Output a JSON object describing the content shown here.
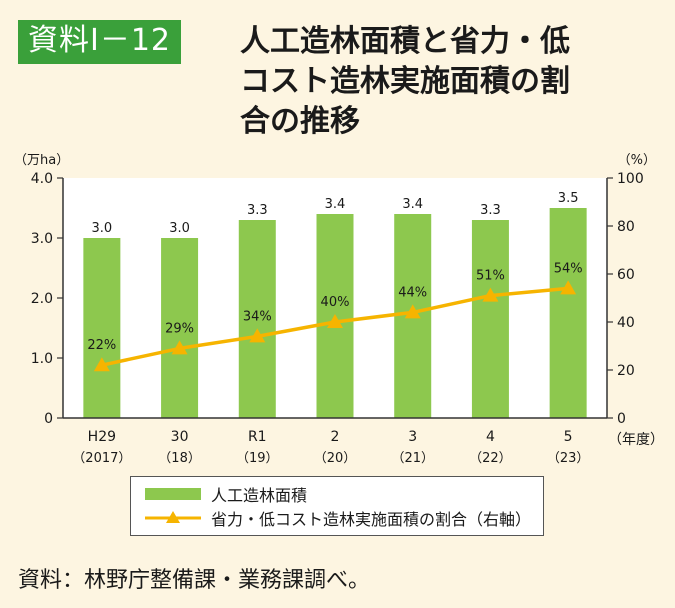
{
  "header": {
    "badge": "資料Ⅰ－12",
    "title_lines": [
      "人工造林面積と省力・低",
      "コスト造林実施面積の割",
      "合の推移"
    ]
  },
  "chart_data": {
    "type": "bar",
    "categories": [
      "H29",
      "30",
      "R1",
      "2",
      "3",
      "4",
      "5"
    ],
    "category_sublabels": [
      "（2017）",
      "（18）",
      "（19）",
      "（20）",
      "（21）",
      "（22）",
      "（23）"
    ],
    "series": [
      {
        "name": "人工造林面積",
        "type": "bar",
        "axis": "left",
        "values": [
          3.0,
          3.0,
          3.3,
          3.4,
          3.4,
          3.3,
          3.5
        ],
        "labels": [
          "3.0",
          "3.0",
          "3.3",
          "3.4",
          "3.4",
          "3.3",
          "3.5"
        ],
        "color": "#8dc84e"
      },
      {
        "name": "省力・低コスト造林実施面積の割合（右軸）",
        "type": "line",
        "axis": "right",
        "values": [
          22,
          29,
          34,
          40,
          44,
          51,
          54
        ],
        "labels": [
          "22%",
          "29%",
          "34%",
          "40%",
          "44%",
          "51%",
          "54%"
        ],
        "color": "#f6b400"
      }
    ],
    "y_left": {
      "unit": "（万ha）",
      "ylim": [
        0,
        4.0
      ],
      "ticks": [
        0,
        1.0,
        2.0,
        3.0,
        4.0
      ],
      "tick_labels": [
        "0",
        "1.0",
        "2.0",
        "3.0",
        "4.0"
      ]
    },
    "y_right": {
      "unit": "（%）",
      "ylim": [
        0,
        100
      ],
      "ticks": [
        0,
        20,
        40,
        60,
        80,
        100
      ],
      "tick_labels": [
        "0",
        "20",
        "40",
        "60",
        "80",
        "100"
      ]
    },
    "x_unit": "（年度）",
    "legend": [
      "人工造林面積",
      "省力・低コスト造林実施面積の割合（右軸）"
    ],
    "legend_position": "bottom"
  },
  "source": "資料：林野庁整備課・業務課調べ。"
}
